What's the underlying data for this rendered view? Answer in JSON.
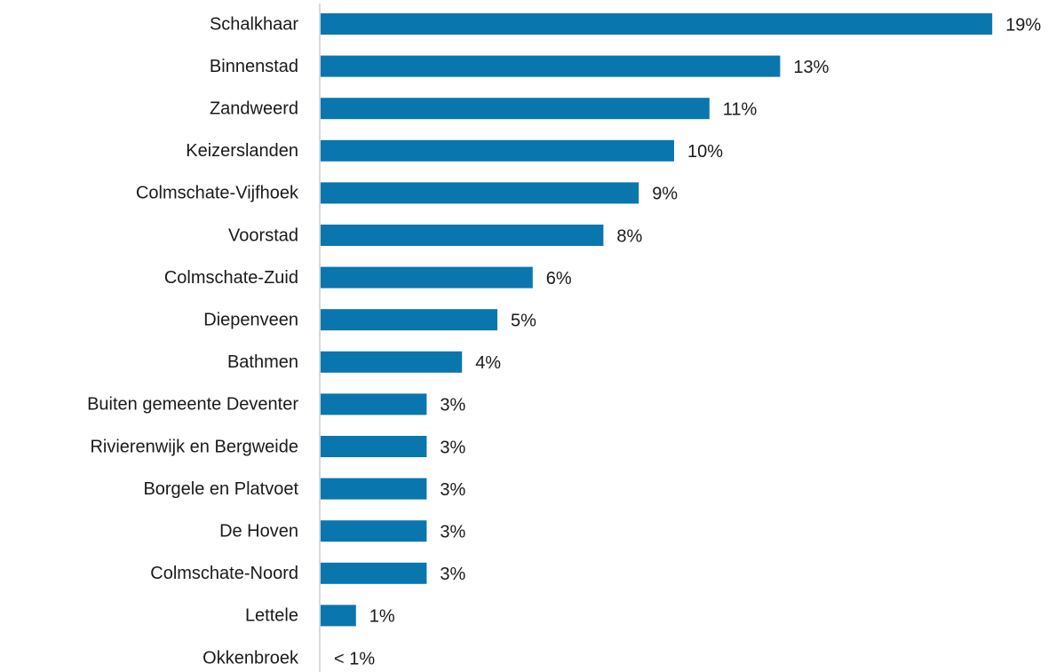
{
  "chart_data": {
    "type": "bar",
    "orientation": "horizontal",
    "categories": [
      "Schalkhaar",
      "Binnenstad",
      "Zandweerd",
      "Keizerslanden",
      "Colmschate-Vijfhoek",
      "Voorstad",
      "Colmschate-Zuid",
      "Diepenveen",
      "Bathmen",
      "Buiten gemeente Deventer",
      "Rivierenwijk en Bergweide",
      "Borgele en Platvoet",
      "De Hoven",
      "Colmschate-Noord",
      "Lettele",
      "Okkenbroek"
    ],
    "values": [
      19,
      13,
      11,
      10,
      9,
      8,
      6,
      5,
      4,
      3,
      3,
      3,
      3,
      3,
      1,
      0
    ],
    "value_labels": [
      "19%",
      "13%",
      "11%",
      "10%",
      "9%",
      "8%",
      "6%",
      "5%",
      "4%",
      "3%",
      "3%",
      "3%",
      "3%",
      "3%",
      "1%",
      "< 1%"
    ],
    "color": "#0a76ae"
  }
}
